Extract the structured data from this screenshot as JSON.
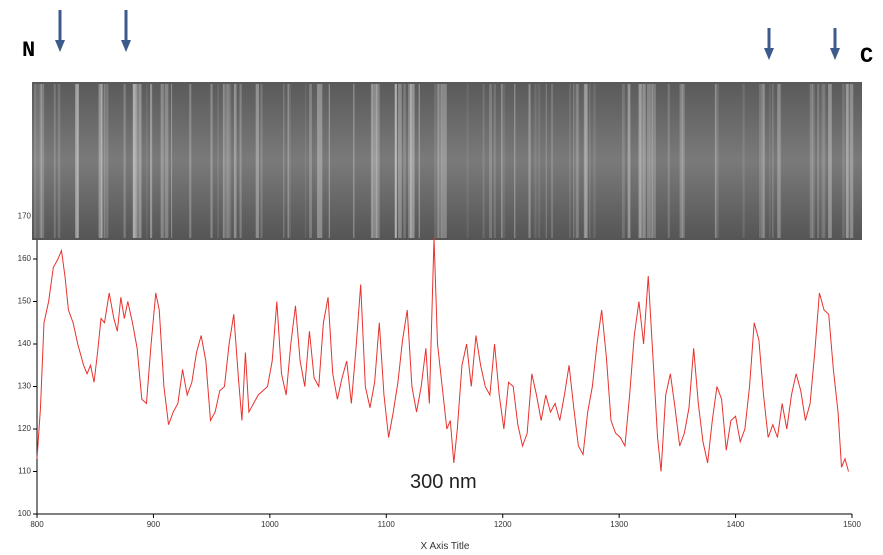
{
  "chart_data": {
    "type": "line",
    "x_label": "X Axis Title",
    "annotations": {
      "left": "N",
      "right": "C",
      "scale": "300 nm"
    },
    "xlim": [
      800,
      1500
    ],
    "xticks": [
      800,
      900,
      1000,
      1100,
      1200,
      1300,
      1400,
      1500
    ],
    "ylim": [
      100,
      172
    ],
    "yticks": [
      100,
      110,
      120,
      130,
      140,
      150,
      160,
      170
    ],
    "series": [
      {
        "color": "#e8322d",
        "x": [
          800,
          803,
          806,
          810,
          814,
          818,
          821,
          824,
          827,
          831,
          835,
          840,
          843,
          846,
          849,
          852,
          855,
          858,
          862,
          866,
          869,
          872,
          875,
          878,
          882,
          886,
          890,
          894,
          898,
          902,
          905,
          909,
          913,
          917,
          921,
          925,
          929,
          933,
          937,
          941,
          945,
          949,
          953,
          957,
          961,
          965,
          969,
          973,
          976,
          979,
          982,
          986,
          990,
          994,
          998,
          1002,
          1006,
          1010,
          1014,
          1018,
          1022,
          1026,
          1030,
          1034,
          1038,
          1042,
          1046,
          1050,
          1054,
          1058,
          1062,
          1066,
          1070,
          1074,
          1078,
          1082,
          1086,
          1090,
          1094,
          1098,
          1102,
          1106,
          1110,
          1114,
          1118,
          1122,
          1126,
          1130,
          1134,
          1137,
          1141,
          1144,
          1148,
          1152,
          1155,
          1158,
          1161,
          1165,
          1169,
          1173,
          1177,
          1181,
          1185,
          1189,
          1193,
          1197,
          1201,
          1205,
          1209,
          1213,
          1217,
          1221,
          1225,
          1229,
          1233,
          1237,
          1241,
          1245,
          1249,
          1253,
          1257,
          1261,
          1265,
          1269,
          1273,
          1277,
          1281,
          1285,
          1289,
          1293,
          1297,
          1301,
          1305,
          1309,
          1313,
          1317,
          1321,
          1325,
          1329,
          1333,
          1336,
          1340,
          1344,
          1348,
          1352,
          1356,
          1360,
          1364,
          1368,
          1372,
          1376,
          1380,
          1384,
          1388,
          1392,
          1396,
          1400,
          1404,
          1408,
          1412,
          1416,
          1420,
          1424,
          1428,
          1432,
          1436,
          1440,
          1444,
          1448,
          1452,
          1456,
          1460,
          1464,
          1468,
          1472,
          1476,
          1480,
          1484,
          1488,
          1491,
          1494,
          1497
        ],
        "values": [
          113,
          125,
          145,
          150,
          158,
          160,
          162,
          156,
          148,
          145,
          140,
          135,
          133,
          135,
          131,
          138,
          146,
          145,
          152,
          146,
          143,
          151,
          146,
          150,
          145,
          139,
          127,
          126,
          140,
          152,
          148,
          130,
          121,
          124,
          126,
          134,
          128,
          131,
          138,
          142,
          136,
          122,
          124,
          129,
          130,
          140,
          147,
          132,
          122,
          138,
          124,
          126,
          128,
          129,
          130,
          136,
          150,
          133,
          128,
          140,
          149,
          136,
          130,
          143,
          132,
          130,
          145,
          151,
          133,
          127,
          132,
          136,
          126,
          139,
          154,
          130,
          125,
          131,
          145,
          128,
          118,
          124,
          131,
          141,
          148,
          130,
          124,
          130,
          139,
          126,
          165,
          140,
          130,
          120,
          122,
          112,
          120,
          135,
          140,
          130,
          142,
          135,
          130,
          128,
          140,
          128,
          120,
          131,
          130,
          121,
          116,
          119,
          133,
          128,
          122,
          128,
          124,
          126,
          122,
          128,
          135,
          125,
          116,
          114,
          124,
          130,
          140,
          148,
          137,
          122,
          119,
          118,
          116,
          128,
          142,
          150,
          140,
          156,
          137,
          118,
          110,
          128,
          133,
          125,
          116,
          119,
          125,
          139,
          126,
          117,
          112,
          122,
          130,
          127,
          115,
          122,
          123,
          117,
          120,
          130,
          145,
          141,
          128,
          118,
          121,
          118,
          126,
          120,
          128,
          133,
          129,
          122,
          126,
          138,
          152,
          148,
          147,
          134,
          124,
          111,
          113,
          110
        ]
      }
    ]
  }
}
